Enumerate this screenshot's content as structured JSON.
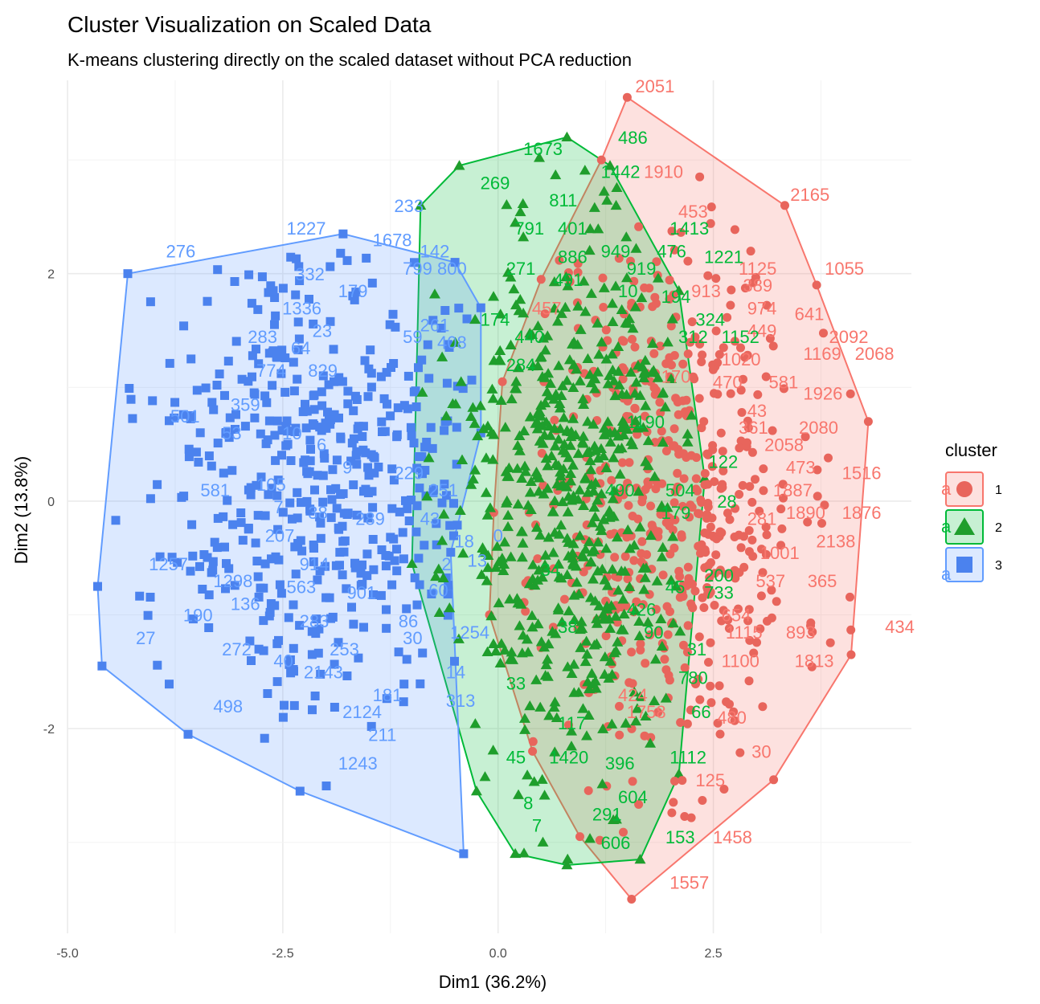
{
  "chart_data": {
    "type": "scatter",
    "title": "Cluster Visualization on Scaled Data",
    "subtitle": "K-means clustering directly on the scaled dataset without PCA reduction",
    "xlabel": "Dim1 (36.2%)",
    "ylabel": "Dim2 (13.8%)",
    "xlim": [
      -5.0,
      4.8
    ],
    "ylim": [
      -3.8,
      3.7
    ],
    "x_ticks": [
      -5.0,
      -2.5,
      0.0,
      2.5
    ],
    "x_tick_labels": [
      "-5.0",
      "-2.5",
      "0.0",
      "2.5"
    ],
    "y_ticks": [
      -2,
      0,
      2
    ],
    "y_tick_labels": [
      "-2",
      "0",
      "2"
    ],
    "grid": true,
    "legend": {
      "title": "cluster",
      "position": "right",
      "glyph": "a"
    },
    "series": [
      {
        "name": "1",
        "color": "#F8766D",
        "point_color": "#E8655C",
        "marker": "circle",
        "hull": [
          [
            1.5,
            3.55
          ],
          [
            3.33,
            2.6
          ],
          [
            3.7,
            1.9
          ],
          [
            4.3,
            0.7
          ],
          [
            4.1,
            -1.35
          ],
          [
            3.2,
            -2.45
          ],
          [
            1.55,
            -3.5
          ],
          [
            0.95,
            -2.95
          ],
          [
            0.4,
            -2.2
          ],
          [
            -0.1,
            -1.0
          ],
          [
            -0.05,
            -0.1
          ],
          [
            0.05,
            1.05
          ],
          [
            0.5,
            1.95
          ],
          [
            1.2,
            3.0
          ]
        ],
        "seed": 11,
        "count": 520,
        "center": [
          2.0,
          0.1
        ],
        "spread": [
          0.75,
          1.25
        ],
        "clip_x": [
          0.3,
          4.2
        ],
        "labels": [
          {
            "text": "2051",
            "x": 1.5,
            "y": 3.55
          },
          {
            "text": "1910",
            "x": 1.6,
            "y": 2.8
          },
          {
            "text": "2165",
            "x": 3.3,
            "y": 2.6
          },
          {
            "text": "453",
            "x": 2.0,
            "y": 2.45
          },
          {
            "text": "1125",
            "x": 2.7,
            "y": 1.95
          },
          {
            "text": "1055",
            "x": 3.7,
            "y": 1.95
          },
          {
            "text": "389",
            "x": 2.75,
            "y": 1.8
          },
          {
            "text": "913",
            "x": 2.15,
            "y": 1.75
          },
          {
            "text": "974",
            "x": 2.8,
            "y": 1.6
          },
          {
            "text": "641",
            "x": 3.35,
            "y": 1.55
          },
          {
            "text": "449",
            "x": 2.8,
            "y": 1.4
          },
          {
            "text": "2092",
            "x": 3.75,
            "y": 1.35
          },
          {
            "text": "1169",
            "x": 3.45,
            "y": 1.2
          },
          {
            "text": "2068",
            "x": 4.05,
            "y": 1.2
          },
          {
            "text": "1020",
            "x": 2.5,
            "y": 1.15
          },
          {
            "text": "581",
            "x": 3.05,
            "y": 0.95
          },
          {
            "text": "1926",
            "x": 3.45,
            "y": 0.85
          },
          {
            "text": "470",
            "x": 2.4,
            "y": 0.95
          },
          {
            "text": "43",
            "x": 2.8,
            "y": 0.7
          },
          {
            "text": "2080",
            "x": 3.4,
            "y": 0.55
          },
          {
            "text": "361",
            "x": 2.7,
            "y": 0.55
          },
          {
            "text": "2058",
            "x": 3.0,
            "y": 0.4
          },
          {
            "text": "473",
            "x": 3.25,
            "y": 0.2
          },
          {
            "text": "1516",
            "x": 3.9,
            "y": 0.15
          },
          {
            "text": "1887",
            "x": 3.1,
            "y": 0.0
          },
          {
            "text": "1890",
            "x": 3.25,
            "y": -0.2
          },
          {
            "text": "1876",
            "x": 3.9,
            "y": -0.2
          },
          {
            "text": "281",
            "x": 2.8,
            "y": -0.25
          },
          {
            "text": "2138",
            "x": 3.6,
            "y": -0.45
          },
          {
            "text": "1001",
            "x": 2.95,
            "y": -0.55
          },
          {
            "text": "537",
            "x": 2.9,
            "y": -0.8
          },
          {
            "text": "365",
            "x": 3.5,
            "y": -0.8
          },
          {
            "text": "654",
            "x": 2.5,
            "y": -1.1
          },
          {
            "text": "434",
            "x": 4.4,
            "y": -1.2
          },
          {
            "text": "893",
            "x": 3.25,
            "y": -1.25
          },
          {
            "text": "1115",
            "x": 2.55,
            "y": -1.25
          },
          {
            "text": "1813",
            "x": 3.35,
            "y": -1.5
          },
          {
            "text": "1100",
            "x": 2.5,
            "y": -1.5
          },
          {
            "text": "480",
            "x": 2.45,
            "y": -2.0
          },
          {
            "text": "30",
            "x": 2.85,
            "y": -2.3
          },
          {
            "text": "125",
            "x": 2.2,
            "y": -2.55
          },
          {
            "text": "1458",
            "x": 2.4,
            "y": -3.05
          },
          {
            "text": "1557",
            "x": 1.9,
            "y": -3.45
          },
          {
            "text": "424",
            "x": 1.3,
            "y": -1.8
          },
          {
            "text": "1758",
            "x": 1.4,
            "y": -1.95
          },
          {
            "text": "457",
            "x": 0.3,
            "y": 1.6
          },
          {
            "text": "170",
            "x": 1.8,
            "y": 1.0
          }
        ]
      },
      {
        "name": "2",
        "color": "#00BA38",
        "point_color": "#1F9E2C",
        "marker": "triangle",
        "hull": [
          [
            0.8,
            3.2
          ],
          [
            1.3,
            2.95
          ],
          [
            2.1,
            1.85
          ],
          [
            2.4,
            0.2
          ],
          [
            2.1,
            -2.4
          ],
          [
            1.65,
            -3.15
          ],
          [
            0.8,
            -3.2
          ],
          [
            0.2,
            -3.1
          ],
          [
            -0.25,
            -2.55
          ],
          [
            -1.0,
            -0.55
          ],
          [
            -0.9,
            2.6
          ],
          [
            -0.45,
            2.95
          ]
        ],
        "seed": 23,
        "count": 560,
        "center": [
          0.75,
          0.0
        ],
        "spread": [
          0.7,
          1.25
        ],
        "clip_x": [
          -0.9,
          2.3
        ],
        "labels": [
          {
            "text": "486",
            "x": 1.3,
            "y": 3.1
          },
          {
            "text": "1673",
            "x": 0.2,
            "y": 3.0
          },
          {
            "text": "1442",
            "x": 1.1,
            "y": 2.8
          },
          {
            "text": "269",
            "x": -0.3,
            "y": 2.7
          },
          {
            "text": "811",
            "x": 0.5,
            "y": 2.55
          },
          {
            "text": "791",
            "x": 0.1,
            "y": 2.3
          },
          {
            "text": "401",
            "x": 0.6,
            "y": 2.3
          },
          {
            "text": "1413",
            "x": 1.9,
            "y": 2.3
          },
          {
            "text": "949",
            "x": 1.1,
            "y": 2.1
          },
          {
            "text": "476",
            "x": 1.75,
            "y": 2.1
          },
          {
            "text": "1221",
            "x": 2.3,
            "y": 2.05
          },
          {
            "text": "886",
            "x": 0.6,
            "y": 2.05
          },
          {
            "text": "271",
            "x": 0.0,
            "y": 1.95
          },
          {
            "text": "919",
            "x": 1.4,
            "y": 1.95
          },
          {
            "text": "491",
            "x": 0.55,
            "y": 1.85
          },
          {
            "text": "194",
            "x": 1.8,
            "y": 1.7
          },
          {
            "text": "10",
            "x": 1.3,
            "y": 1.75
          },
          {
            "text": "324",
            "x": 2.2,
            "y": 1.5
          },
          {
            "text": "174",
            "x": -0.3,
            "y": 1.5
          },
          {
            "text": "440",
            "x": 0.1,
            "y": 1.35
          },
          {
            "text": "1152",
            "x": 2.5,
            "y": 1.35
          },
          {
            "text": "312",
            "x": 2.0,
            "y": 1.35
          },
          {
            "text": "284",
            "x": 0.0,
            "y": 1.1
          },
          {
            "text": "1190",
            "x": 1.4,
            "y": 0.6
          },
          {
            "text": "122",
            "x": 2.35,
            "y": 0.25
          },
          {
            "text": "504",
            "x": 1.85,
            "y": 0.0
          },
          {
            "text": "490",
            "x": 1.15,
            "y": 0.0
          },
          {
            "text": "28",
            "x": 2.45,
            "y": -0.1
          },
          {
            "text": "179",
            "x": 1.8,
            "y": -0.2
          },
          {
            "text": "200",
            "x": 2.3,
            "y": -0.75
          },
          {
            "text": "733",
            "x": 2.3,
            "y": -0.9
          },
          {
            "text": "45",
            "x": 1.85,
            "y": -0.85
          },
          {
            "text": "426",
            "x": 1.4,
            "y": -1.05
          },
          {
            "text": "90",
            "x": 1.6,
            "y": -1.25
          },
          {
            "text": "31",
            "x": 2.1,
            "y": -1.4
          },
          {
            "text": "780",
            "x": 2.0,
            "y": -1.65
          },
          {
            "text": "66",
            "x": 2.15,
            "y": -1.95
          },
          {
            "text": "117",
            "x": 0.6,
            "y": -2.05
          },
          {
            "text": "45",
            "x": 0.0,
            "y": -2.35
          },
          {
            "text": "1420",
            "x": 0.5,
            "y": -2.35
          },
          {
            "text": "396",
            "x": 1.15,
            "y": -2.4
          },
          {
            "text": "1112",
            "x": 1.9,
            "y": -2.35
          },
          {
            "text": "604",
            "x": 1.3,
            "y": -2.7
          },
          {
            "text": "8",
            "x": 0.2,
            "y": -2.75
          },
          {
            "text": "291",
            "x": 1.0,
            "y": -2.85
          },
          {
            "text": "153",
            "x": 1.85,
            "y": -3.05
          },
          {
            "text": "606",
            "x": 1.1,
            "y": -3.1
          },
          {
            "text": "7",
            "x": 0.3,
            "y": -2.95
          },
          {
            "text": "33",
            "x": 0.0,
            "y": -1.7
          },
          {
            "text": "34",
            "x": 0.4,
            "y": -0.7
          },
          {
            "text": "38",
            "x": 0.6,
            "y": -1.2
          }
        ]
      },
      {
        "name": "3",
        "color": "#619CFF",
        "point_color": "#4B82EE",
        "marker": "square",
        "hull": [
          [
            -1.8,
            2.35
          ],
          [
            -0.5,
            2.1
          ],
          [
            -0.2,
            1.7
          ],
          [
            -0.2,
            0.6
          ],
          [
            -0.55,
            -0.45
          ],
          [
            -0.4,
            -3.1
          ],
          [
            -2.3,
            -2.55
          ],
          [
            -3.6,
            -2.05
          ],
          [
            -4.6,
            -1.45
          ],
          [
            -4.65,
            -0.75
          ],
          [
            -4.3,
            2.0
          ]
        ],
        "seed": 37,
        "count": 480,
        "center": [
          -2.0,
          0.3
        ],
        "spread": [
          0.95,
          1.0
        ],
        "clip_x": [
          -4.5,
          -0.3
        ],
        "labels": [
          {
            "text": "233",
            "x": -1.3,
            "y": 2.5
          },
          {
            "text": "1227",
            "x": -2.55,
            "y": 2.3
          },
          {
            "text": "1678",
            "x": -1.55,
            "y": 2.2
          },
          {
            "text": "142",
            "x": -1.0,
            "y": 2.1
          },
          {
            "text": "276",
            "x": -3.95,
            "y": 2.1
          },
          {
            "text": "332",
            "x": -2.45,
            "y": 1.9
          },
          {
            "text": "799",
            "x": -1.2,
            "y": 1.95
          },
          {
            "text": "800",
            "x": -0.8,
            "y": 1.95
          },
          {
            "text": "179",
            "x": -1.95,
            "y": 1.75
          },
          {
            "text": "1336",
            "x": -2.6,
            "y": 1.6
          },
          {
            "text": "261",
            "x": -1.0,
            "y": 1.45
          },
          {
            "text": "23",
            "x": -2.25,
            "y": 1.4
          },
          {
            "text": "283",
            "x": -3.0,
            "y": 1.35
          },
          {
            "text": "59",
            "x": -1.2,
            "y": 1.35
          },
          {
            "text": "408",
            "x": -0.8,
            "y": 1.3
          },
          {
            "text": "64",
            "x": -2.5,
            "y": 1.25
          },
          {
            "text": "774",
            "x": -2.9,
            "y": 1.05
          },
          {
            "text": "829",
            "x": -2.3,
            "y": 1.05
          },
          {
            "text": "359",
            "x": -3.2,
            "y": 0.75
          },
          {
            "text": "501",
            "x": -3.9,
            "y": 0.65
          },
          {
            "text": "53",
            "x": -3.3,
            "y": 0.5
          },
          {
            "text": "10",
            "x": -2.6,
            "y": 0.5
          },
          {
            "text": "6",
            "x": -2.2,
            "y": 0.4
          },
          {
            "text": "9",
            "x": -1.9,
            "y": 0.2
          },
          {
            "text": "229",
            "x": -1.3,
            "y": 0.15
          },
          {
            "text": "581",
            "x": -3.55,
            "y": -0.0
          },
          {
            "text": "105",
            "x": -2.9,
            "y": 0.05
          },
          {
            "text": "251",
            "x": -0.9,
            "y": -0.0
          },
          {
            "text": "7",
            "x": -2.7,
            "y": -0.15
          },
          {
            "text": "38",
            "x": -2.3,
            "y": -0.2
          },
          {
            "text": "289",
            "x": -1.75,
            "y": -0.25
          },
          {
            "text": "43",
            "x": -1.0,
            "y": -0.25
          },
          {
            "text": "207",
            "x": -2.8,
            "y": -0.4
          },
          {
            "text": "18",
            "x": -0.6,
            "y": -0.45
          },
          {
            "text": "0",
            "x": -0.15,
            "y": -0.4
          },
          {
            "text": "1257",
            "x": -4.15,
            "y": -0.65
          },
          {
            "text": "914",
            "x": -2.4,
            "y": -0.65
          },
          {
            "text": "2",
            "x": -0.75,
            "y": -0.65
          },
          {
            "text": "13",
            "x": -0.45,
            "y": -0.62
          },
          {
            "text": "1298",
            "x": -3.4,
            "y": -0.8
          },
          {
            "text": "563",
            "x": -2.55,
            "y": -0.85
          },
          {
            "text": "901",
            "x": -1.85,
            "y": -0.9
          },
          {
            "text": "60",
            "x": -0.9,
            "y": -0.88
          },
          {
            "text": "136",
            "x": -3.2,
            "y": -1.0
          },
          {
            "text": "190",
            "x": -3.75,
            "y": -1.1
          },
          {
            "text": "283",
            "x": -2.4,
            "y": -1.15
          },
          {
            "text": "86",
            "x": -1.25,
            "y": -1.15
          },
          {
            "text": "1254",
            "x": -0.65,
            "y": -1.25
          },
          {
            "text": "30",
            "x": -1.2,
            "y": -1.3
          },
          {
            "text": "27",
            "x": -4.3,
            "y": -1.3
          },
          {
            "text": "272",
            "x": -3.3,
            "y": -1.4
          },
          {
            "text": "253",
            "x": -2.05,
            "y": -1.4
          },
          {
            "text": "40",
            "x": -2.7,
            "y": -1.5
          },
          {
            "text": "2143",
            "x": -2.35,
            "y": -1.6
          },
          {
            "text": "14",
            "x": -0.7,
            "y": -1.6
          },
          {
            "text": "181",
            "x": -1.55,
            "y": -1.8
          },
          {
            "text": "313",
            "x": -0.7,
            "y": -1.85
          },
          {
            "text": "498",
            "x": -3.4,
            "y": -1.9
          },
          {
            "text": "2124",
            "x": -1.9,
            "y": -1.95
          },
          {
            "text": "211",
            "x": -1.6,
            "y": -2.15
          },
          {
            "text": "1243",
            "x": -1.95,
            "y": -2.4
          }
        ]
      }
    ]
  }
}
